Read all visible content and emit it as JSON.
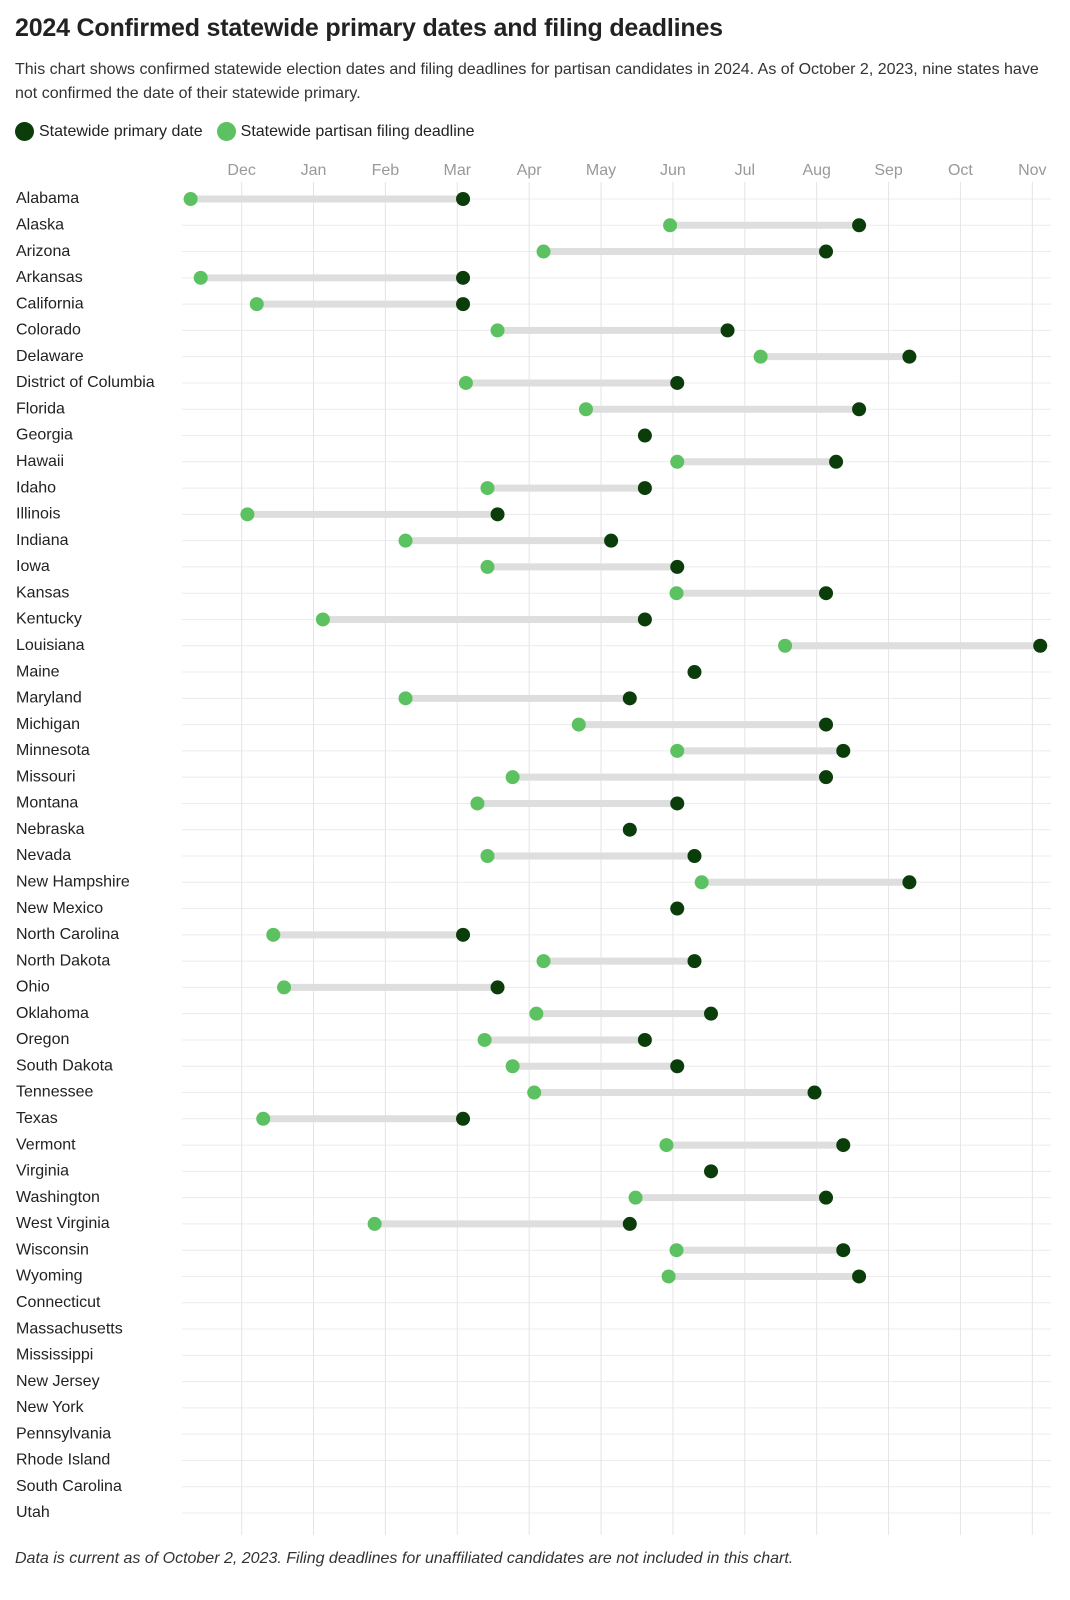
{
  "chart_data": {
    "type": "dumbbell",
    "title": "2024 Confirmed statewide primary dates and filing deadlines",
    "subtitle": "This chart shows confirmed statewide election dates and filing deadlines for partisan candidates in 2024. As of October 2, 2023, nine states have not confirmed the date of their statewide primary.",
    "note": "Data is current as of October 2, 2023. Filing deadlines for unaffiliated candidates are not included in this chart.",
    "categories": [
      "Alabama",
      "Alaska",
      "Arizona",
      "Arkansas",
      "California",
      "Colorado",
      "Delaware",
      "District of Columbia",
      "Florida",
      "Georgia",
      "Hawaii",
      "Idaho",
      "Illinois",
      "Indiana",
      "Iowa",
      "Kansas",
      "Kentucky",
      "Louisiana",
      "Maine",
      "Maryland",
      "Michigan",
      "Minnesota",
      "Missouri",
      "Montana",
      "Nebraska",
      "Nevada",
      "New Hampshire",
      "New Mexico",
      "North Carolina",
      "North Dakota",
      "Ohio",
      "Oklahoma",
      "Oregon",
      "South Dakota",
      "Tennessee",
      "Texas",
      "Vermont",
      "Virginia",
      "Washington",
      "West Virginia",
      "Wisconsin",
      "Wyoming",
      "Connecticut",
      "Massachusetts",
      "Mississippi",
      "New Jersey",
      "New York",
      "Pennsylvania",
      "Rhode Island",
      "South Carolina",
      "Utah"
    ],
    "series": [
      {
        "name": "Statewide primary date",
        "color": "#0b3d0b",
        "values": [
          15.08,
          20.59,
          20.13,
          15.08,
          15.08,
          18.76,
          21.29,
          18.06,
          20.59,
          17.61,
          20.27,
          17.61,
          15.56,
          17.14,
          18.06,
          20.13,
          17.61,
          23.11,
          18.3,
          17.4,
          20.13,
          20.37,
          20.13,
          18.06,
          17.4,
          18.3,
          21.29,
          18.06,
          15.08,
          18.3,
          15.56,
          18.53,
          17.61,
          18.06,
          19.97,
          15.08,
          20.37,
          18.53,
          20.13,
          17.4,
          20.37,
          20.59,
          null,
          null,
          null,
          null,
          null,
          null,
          null,
          null,
          null
        ]
      },
      {
        "name": "Statewide partisan filing deadline",
        "color": "#5cc160",
        "values": [
          11.29,
          17.96,
          16.2,
          11.43,
          12.21,
          15.56,
          19.22,
          15.12,
          16.79,
          null,
          18.06,
          15.42,
          12.08,
          14.28,
          15.42,
          18.05,
          13.13,
          19.56,
          null,
          14.28,
          16.69,
          18.06,
          15.77,
          15.28,
          null,
          15.42,
          18.4,
          null,
          12.44,
          16.2,
          12.59,
          16.1,
          15.38,
          15.77,
          16.07,
          12.3,
          17.91,
          null,
          17.48,
          13.85,
          18.05,
          17.94,
          null,
          null,
          null,
          null,
          null,
          null,
          null,
          null,
          null
        ]
      }
    ],
    "xlim": [
      11.17,
      23.26
    ],
    "xticks": [
      {
        "value": 12,
        "label": "Dec"
      },
      {
        "value": 13,
        "label": "Jan"
      },
      {
        "value": 14,
        "label": "Feb"
      },
      {
        "value": 15,
        "label": "Mar"
      },
      {
        "value": 16,
        "label": "Apr"
      },
      {
        "value": 17,
        "label": "May"
      },
      {
        "value": 18,
        "label": "Jun"
      },
      {
        "value": 19,
        "label": "Jul"
      },
      {
        "value": 20,
        "label": "Aug"
      },
      {
        "value": 21,
        "label": "Sep"
      },
      {
        "value": 22,
        "label": "Oct"
      },
      {
        "value": 23,
        "label": "Nov"
      }
    ],
    "grid": true
  }
}
